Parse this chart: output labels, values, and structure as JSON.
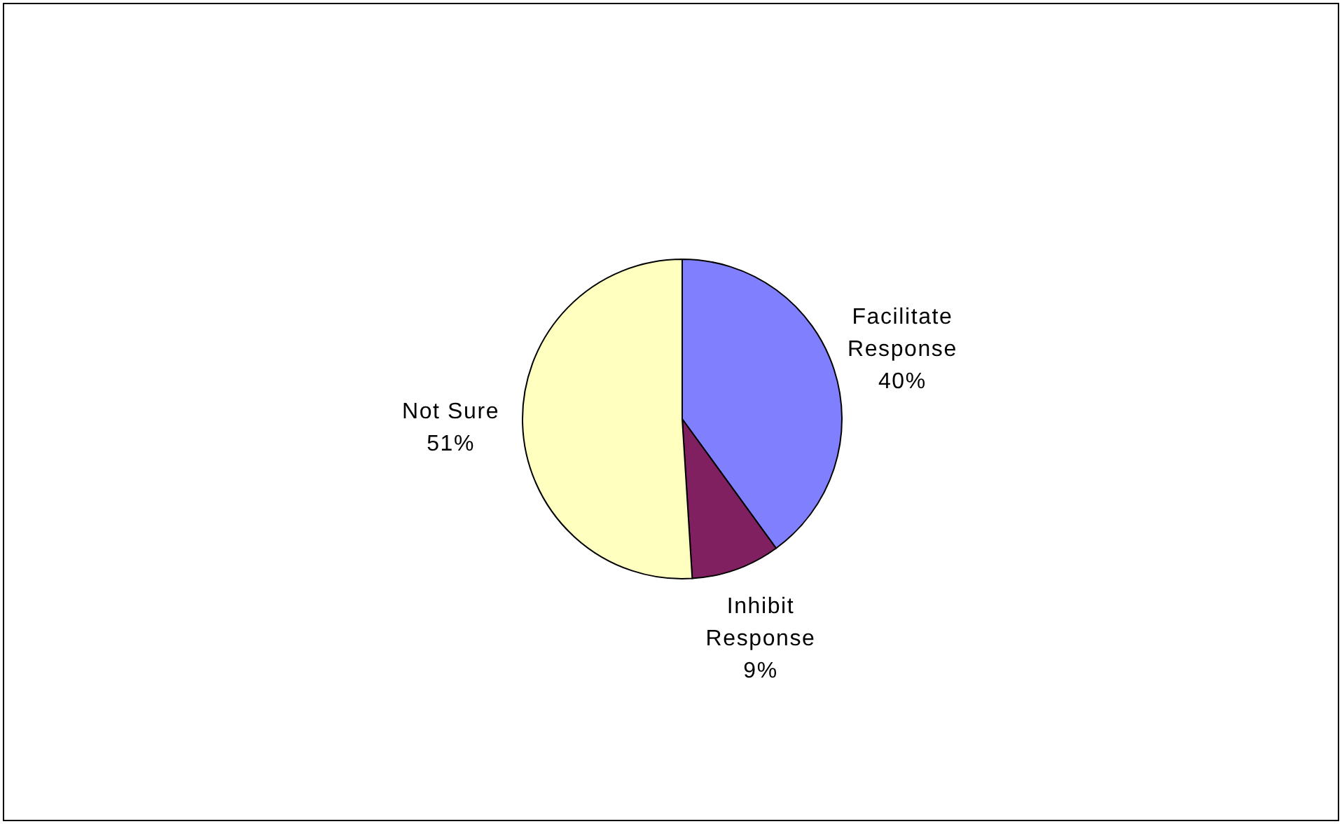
{
  "chart_data": {
    "type": "pie",
    "categories": [
      "Facilitate Response",
      "Inhibit Response",
      "Not Sure"
    ],
    "values": [
      40,
      9,
      51
    ],
    "colors": [
      "#8080ff",
      "#802060",
      "#ffffc0"
    ],
    "value_labels": [
      "40%",
      "9%",
      "51%"
    ]
  }
}
